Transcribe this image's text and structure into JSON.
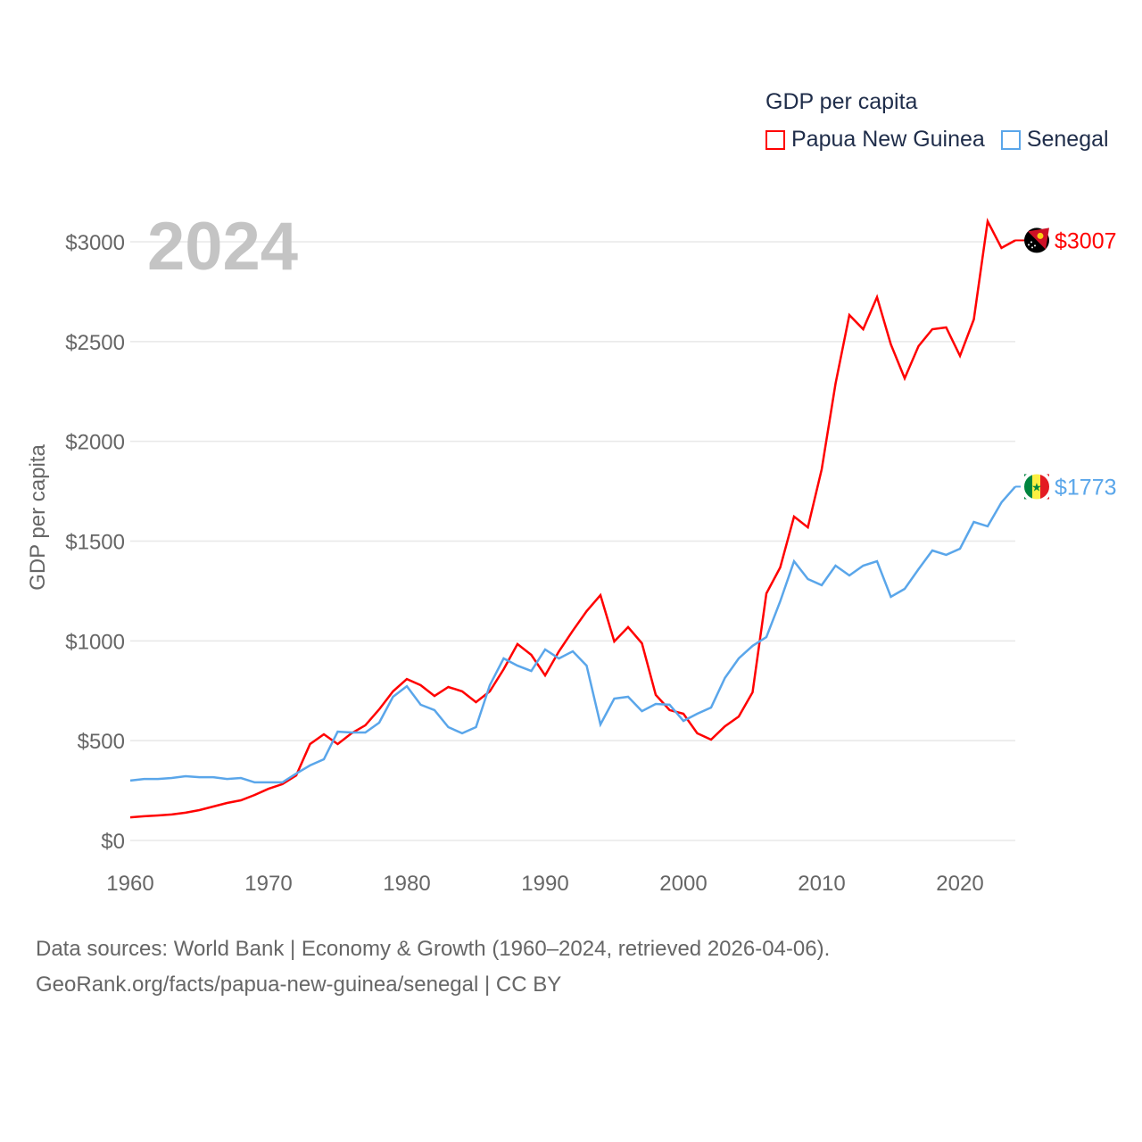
{
  "chart_data": {
    "type": "line",
    "title": "GDP per capita",
    "year_label": "2024",
    "ylabel": "GDP per capita",
    "xlabel": "",
    "xlim": [
      1960,
      2024
    ],
    "ylim": [
      0,
      3200
    ],
    "x_ticks": [
      1960,
      1970,
      1980,
      1990,
      2000,
      2010,
      2020
    ],
    "x_tick_labels": [
      "1960",
      "1970",
      "1980",
      "1990",
      "2000",
      "2010",
      "2020"
    ],
    "y_ticks": [
      0,
      500,
      1000,
      1500,
      2000,
      2500,
      3000
    ],
    "y_tick_labels": [
      "$0",
      "$500",
      "$1000",
      "$1500",
      "$2000",
      "$2500",
      "$3000"
    ],
    "grid": true,
    "legend_position": "top-right",
    "x": [
      1960,
      1961,
      1962,
      1963,
      1964,
      1965,
      1966,
      1967,
      1968,
      1969,
      1970,
      1971,
      1972,
      1973,
      1974,
      1975,
      1976,
      1977,
      1978,
      1979,
      1980,
      1981,
      1982,
      1983,
      1984,
      1985,
      1986,
      1987,
      1988,
      1989,
      1990,
      1991,
      1992,
      1993,
      1994,
      1995,
      1996,
      1997,
      1998,
      1999,
      2000,
      2001,
      2002,
      2003,
      2004,
      2005,
      2006,
      2007,
      2008,
      2009,
      2010,
      2011,
      2012,
      2013,
      2014,
      2015,
      2016,
      2017,
      2018,
      2019,
      2020,
      2021,
      2022,
      2023,
      2024
    ],
    "series": [
      {
        "name": "Papua New Guinea",
        "color": "#ff0000",
        "flag": "papua-new-guinea-flag",
        "end_label": "$3007",
        "values": [
          116,
          121,
          125,
          130,
          139,
          152,
          170,
          188,
          201,
          228,
          259,
          282,
          326,
          483,
          532,
          483,
          537,
          577,
          657,
          747,
          809,
          778,
          724,
          769,
          747,
          693,
          747,
          858,
          984,
          930,
          827,
          948,
          1051,
          1149,
          1229,
          997,
          1069,
          988,
          729,
          653,
          635,
          537,
          505,
          572,
          621,
          742,
          1238,
          1368,
          1623,
          1569,
          1860,
          2289,
          2633,
          2562,
          2723,
          2486,
          2316,
          2477,
          2562,
          2571,
          2428,
          2611,
          3103,
          2969,
          3007
        ]
      },
      {
        "name": "Senegal",
        "color": "#5aa6ea",
        "flag": "senegal-flag",
        "end_label": "$1773",
        "values": [
          300,
          308,
          308,
          313,
          322,
          317,
          317,
          308,
          313,
          291,
          291,
          291,
          335,
          376,
          407,
          545,
          541,
          541,
          590,
          720,
          773,
          680,
          653,
          568,
          537,
          568,
          778,
          912,
          876,
          849,
          957,
          912,
          948,
          876,
          581,
          711,
          720,
          648,
          684,
          680,
          599,
          635,
          666,
          814,
          912,
          975,
          1019,
          1198,
          1399,
          1310,
          1279,
          1377,
          1328,
          1377,
          1399,
          1221,
          1261,
          1359,
          1453,
          1431,
          1462,
          1596,
          1574,
          1694,
          1773
        ]
      }
    ]
  },
  "footer": {
    "line1": "Data sources: World Bank | Economy & Growth (1960–2024, retrieved 2026-04-06).",
    "line2": "GeoRank.org/facts/papua-new-guinea/senegal | CC BY"
  }
}
